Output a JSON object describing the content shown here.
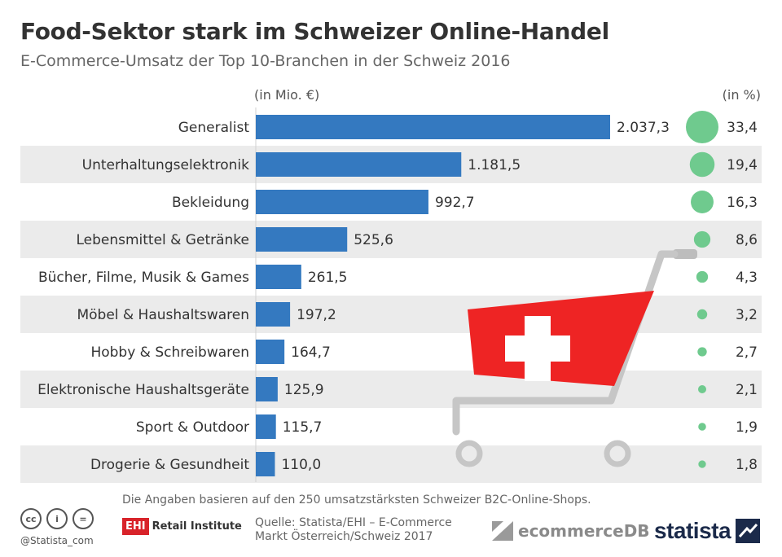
{
  "header": {
    "title": "Food-Sektor stark im Schweizer Online-Handel",
    "subtitle": "E-Commerce-Umsatz der Top 10-Branchen in der Schweiz 2016"
  },
  "chart_data": {
    "type": "bar",
    "orientation": "horizontal",
    "title": "Food-Sektor stark im Schweizer Online-Handel",
    "subtitle": "E-Commerce-Umsatz der Top 10-Branchen in der Schweiz 2016",
    "unit_left": "(in Mio. €)",
    "unit_right": "(in %)",
    "categories": [
      "Generalist",
      "Unterhaltungselektronik",
      "Bekleidung",
      "Lebensmittel & Getränke",
      "Bücher, Filme, Musik & Games",
      "Möbel & Haushaltswaren",
      "Hobby & Schreibwaren",
      "Elektronische Haushaltsgeräte",
      "Sport & Outdoor",
      "Drogerie & Gesundheit"
    ],
    "series": [
      {
        "values": [
          2037.3,
          1181.5,
          992.7,
          525.6,
          261.5,
          197.2,
          164.7,
          125.9,
          115.7,
          110.0
        ],
        "labels": [
          "2.037,3",
          "1.181,5",
          "992,7",
          "525,6",
          "261,5",
          "197,2",
          "164,7",
          "125,9",
          "115,7",
          "110,0"
        ]
      },
      {
        "values": [
          33.4,
          19.4,
          16.3,
          8.6,
          4.3,
          3.2,
          2.7,
          2.1,
          1.9,
          1.8
        ],
        "labels": [
          "33,4",
          "19,4",
          "16,3",
          "8,6",
          "4,3",
          "3,2",
          "2,7",
          "2,1",
          "1,9",
          "1,8"
        ]
      }
    ],
    "xlim": [
      0,
      2037.3
    ],
    "colors": {
      "bar": "#3479c0",
      "bubble": "#6fca8e",
      "stripe": "#ebebeb"
    }
  },
  "footer": {
    "footnote": "Die Angaben basieren auf den 250 umsatzstärksten Schweizer B2C-Online-Shops.",
    "source_line1": "Quelle: Statista/EHI – E-Commerce",
    "source_line2": "Markt Österreich/Schweiz 2017",
    "handle": "@Statista_com",
    "ehi_box": "EHI",
    "ehi_text": "Retail Institute",
    "ecommercedb": "ecommerceDB",
    "statista": "statista",
    "cc_icons": [
      "cc-icon",
      "by-icon",
      "nd-icon"
    ],
    "cc_glyphs": [
      "cc",
      "i",
      "="
    ]
  },
  "decoration": {
    "cart_flag": "swiss-flag-cart-illustration",
    "cart_color": "#ee2424"
  }
}
